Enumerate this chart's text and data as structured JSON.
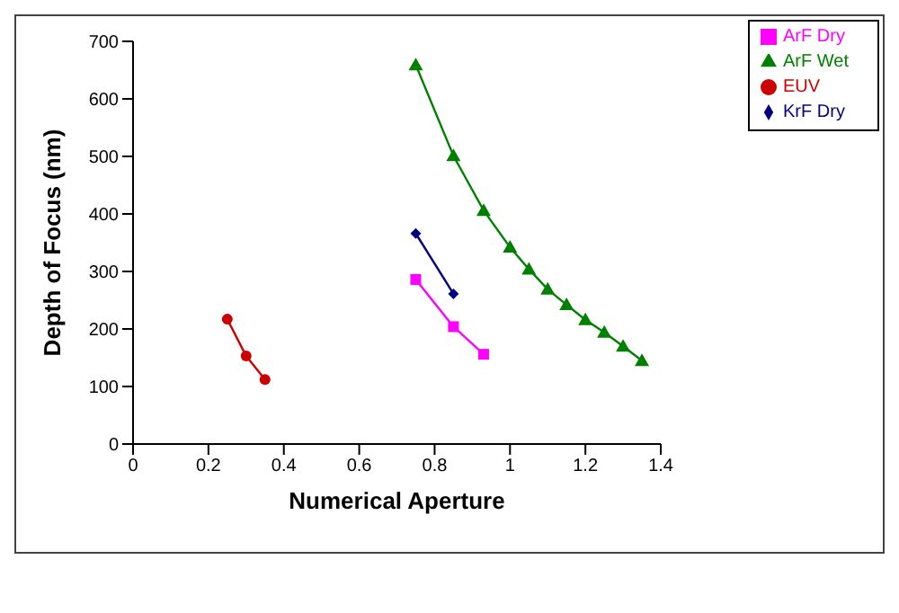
{
  "chart_data": {
    "type": "line",
    "xlabel": "Numerical Aperture",
    "ylabel": "Depth of Focus (nm)",
    "xlim": [
      0,
      1.4
    ],
    "xticks": [
      0,
      0.2,
      0.4,
      0.6,
      0.8,
      1,
      1.2,
      1.4
    ],
    "ylim": [
      0,
      700
    ],
    "yticks": [
      0,
      100,
      200,
      300,
      400,
      500,
      600,
      700
    ],
    "grid": false,
    "legend": "top right",
    "line_style": "solid",
    "series": [
      {
        "name": "KrF Dry",
        "color": "#000080",
        "marker": "diamond",
        "x": [
          0.75,
          0.85
        ],
        "values": [
          366,
          261
        ]
      },
      {
        "name": "ArF Dry",
        "color": "#ff00ff",
        "marker": "square",
        "x": [
          0.75,
          0.85,
          0.93
        ],
        "values": [
          286,
          204,
          156
        ]
      },
      {
        "name": "ArF Wet",
        "color": "#008000",
        "marker": "triangle",
        "x": [
          0.75,
          0.85,
          0.93,
          1.0,
          1.05,
          1.1,
          1.15,
          1.2,
          1.25,
          1.3,
          1.35
        ],
        "values": [
          659,
          501,
          406,
          342,
          304,
          269,
          242,
          216,
          194,
          170,
          145
        ]
      },
      {
        "name": "EUV",
        "color": "#cc0000",
        "marker": "circle",
        "x": [
          0.25,
          0.3,
          0.35
        ],
        "values": [
          217,
          153,
          112
        ]
      }
    ]
  }
}
